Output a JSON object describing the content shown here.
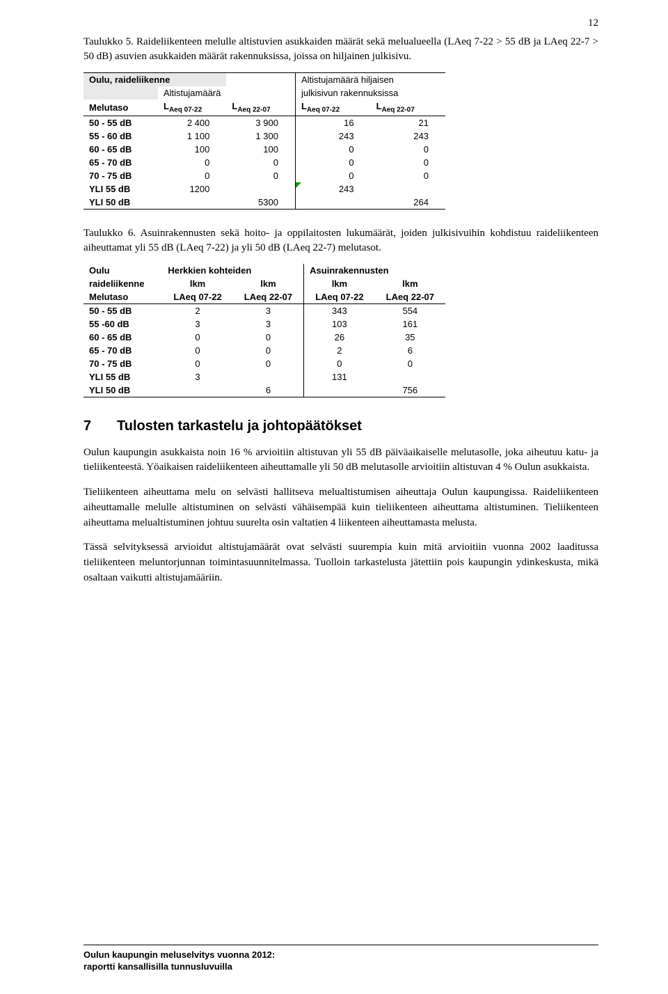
{
  "page_number": "12",
  "caption5": "Taulukko 5. Raideliikenteen melulle altistuvien asukkaiden määrät sekä melualueella (LAeq 7-22 > 55 dB ja LAeq 22-7 > 50 dB) asuvien asukkaiden määrät rakennuksissa, joissa on hiljainen julkisivu.",
  "table1": {
    "h_top_left": "Oulu, raideliikenne",
    "h_top_right": "Altistujamäärä hiljaisen",
    "h_row2_a": "Altistujamäärä",
    "h_row2_b": "julkisivun rakennuksissa",
    "h_melutaso": "Melutaso",
    "h_c1": "LAeq 07-22",
    "h_c2": "LAeq 22-07",
    "h_c3": "LAeq 07-22",
    "h_c4": "LAeq 22-07",
    "rows": [
      {
        "label": "50 - 55 dB",
        "c1": "2 400",
        "c2": "3 900",
        "c3": "16",
        "c4": "21"
      },
      {
        "label": "55 - 60 dB",
        "c1": "1 100",
        "c2": "1 300",
        "c3": "243",
        "c4": "243"
      },
      {
        "label": "60 - 65 dB",
        "c1": "100",
        "c2": "100",
        "c3": "0",
        "c4": "0"
      },
      {
        "label": "65 - 70 dB",
        "c1": "0",
        "c2": "0",
        "c3": "0",
        "c4": "0"
      },
      {
        "label": "70 - 75 dB",
        "c1": "0",
        "c2": "0",
        "c3": "0",
        "c4": "0"
      }
    ],
    "yli55": {
      "label": "YLI 55 dB",
      "c1": "1200",
      "c3": "243"
    },
    "yli50": {
      "label": "YLI 50 dB",
      "c2": "5300",
      "c4": "264"
    }
  },
  "caption6": "Taulukko 6. Asuinrakennusten sekä hoito- ja oppilaitosten lukumäärät, joiden julkisivuihin kohdistuu raideliikenteen aiheuttamat yli 55 dB (LAeq 7-22) ja yli 50 dB (LAeq 22-7) melutasot.",
  "table2": {
    "h_oulu": "Oulu",
    "h_herk": "Herkkien kohteiden",
    "h_asuin": "Asuinrakennusten",
    "h_raide": "raideliikenne",
    "h_lkm": "lkm",
    "h_melutaso": "Melutaso",
    "h_c1": "LAeq 07-22",
    "h_c2": "LAeq 22-07",
    "h_c3": "LAeq 07-22",
    "h_c4": "LAeq 22-07",
    "rows": [
      {
        "label": "50 - 55 dB",
        "c1": "2",
        "c2": "3",
        "c3": "343",
        "c4": "554"
      },
      {
        "label": "55 -60 dB",
        "c1": "3",
        "c2": "3",
        "c3": "103",
        "c4": "161"
      },
      {
        "label": "60 - 65 dB",
        "c1": "0",
        "c2": "0",
        "c3": "26",
        "c4": "35"
      },
      {
        "label": "65 - 70 dB",
        "c1": "0",
        "c2": "0",
        "c3": "2",
        "c4": "6"
      },
      {
        "label": "70 - 75 dB",
        "c1": "0",
        "c2": "0",
        "c3": "0",
        "c4": "0"
      }
    ],
    "yli55": {
      "label": "YLI 55 dB",
      "c1": "3",
      "c3": "131"
    },
    "yli50": {
      "label": "YLI 50 dB",
      "c2": "6",
      "c4": "756"
    }
  },
  "section": {
    "num": "7",
    "title": "Tulosten tarkastelu ja johtopäätökset"
  },
  "para1": "Oulun kaupungin asukkaista noin 16 % arvioitiin altistuvan yli 55 dB päiväaikaiselle melutasolle, joka aiheutuu katu- ja tieliikenteestä. Yöaikaisen raideliikenteen aiheuttamalle yli 50 dB melutasolle arvioitiin altistuvan 4 % Oulun asukkaista.",
  "para2": "Tieliikenteen aiheuttama melu on selvästi hallitseva melualtistumisen aiheuttaja Oulun kaupungissa. Raideliikenteen aiheuttamalle melulle altistuminen on selvästi vähäisempää kuin tieliikenteen aiheuttama altistuminen. Tieliikenteen aiheuttama melualtistuminen johtuu suurelta osin valtatien 4 liikenteen aiheuttamasta melusta.",
  "para3": "Tässä selvityksessä arvioidut altistujamäärät ovat selvästi suurempia kuin mitä arvioitiin vuonna 2002 laaditussa tieliikenteen meluntorjunnan toimintasuunnitelmassa. Tuolloin tarkastelusta jätettiin pois kaupungin ydinkeskusta, mikä osaltaan vaikutti altistujamääriin.",
  "footer1": "Oulun kaupungin meluselvitys vuonna 2012:",
  "footer2": "raportti kansallisilla tunnusluvuilla",
  "colors": {
    "shade": "#e8e8e8",
    "triangle": "#009900",
    "text": "#000000",
    "bg": "#ffffff"
  }
}
